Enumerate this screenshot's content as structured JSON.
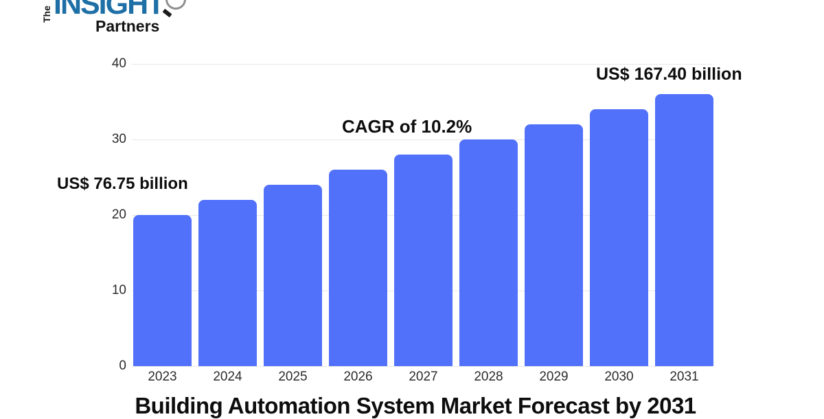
{
  "logo": {
    "the": "The",
    "insight": "INSIGHT",
    "partners": "Partners",
    "insight_color": "#1e6fa6",
    "text_color": "#131313"
  },
  "title": "Building Automation System Market Forecast by 2031",
  "annotations": {
    "start_value": "US$ 76.75 billion",
    "cagr": "CAGR of 10.2%",
    "end_value": "US$ 167.40 billion"
  },
  "chart_data": {
    "type": "bar",
    "title": "Building Automation System Market Forecast by 2031",
    "categories": [
      "2023",
      "2024",
      "2025",
      "2026",
      "2027",
      "2028",
      "2029",
      "2030",
      "2031"
    ],
    "values": [
      20,
      22,
      24,
      26,
      28,
      30,
      32,
      34,
      36
    ],
    "series_note": "bars drawn on 0-40 axis scale; real-world values annotated: 2023 = US$ 76.75 billion, 2031 = US$ 167.40 billion, CAGR 10.2%",
    "xlabel": "",
    "ylabel": "",
    "y_ticks": [
      0,
      10,
      20,
      30,
      40
    ],
    "ylim": [
      0,
      40
    ],
    "grid": true,
    "legend": "none",
    "bar_color": "#5271fa",
    "grid_color": "#e7e7e7",
    "tick_label_color": "#2b2b2b"
  }
}
